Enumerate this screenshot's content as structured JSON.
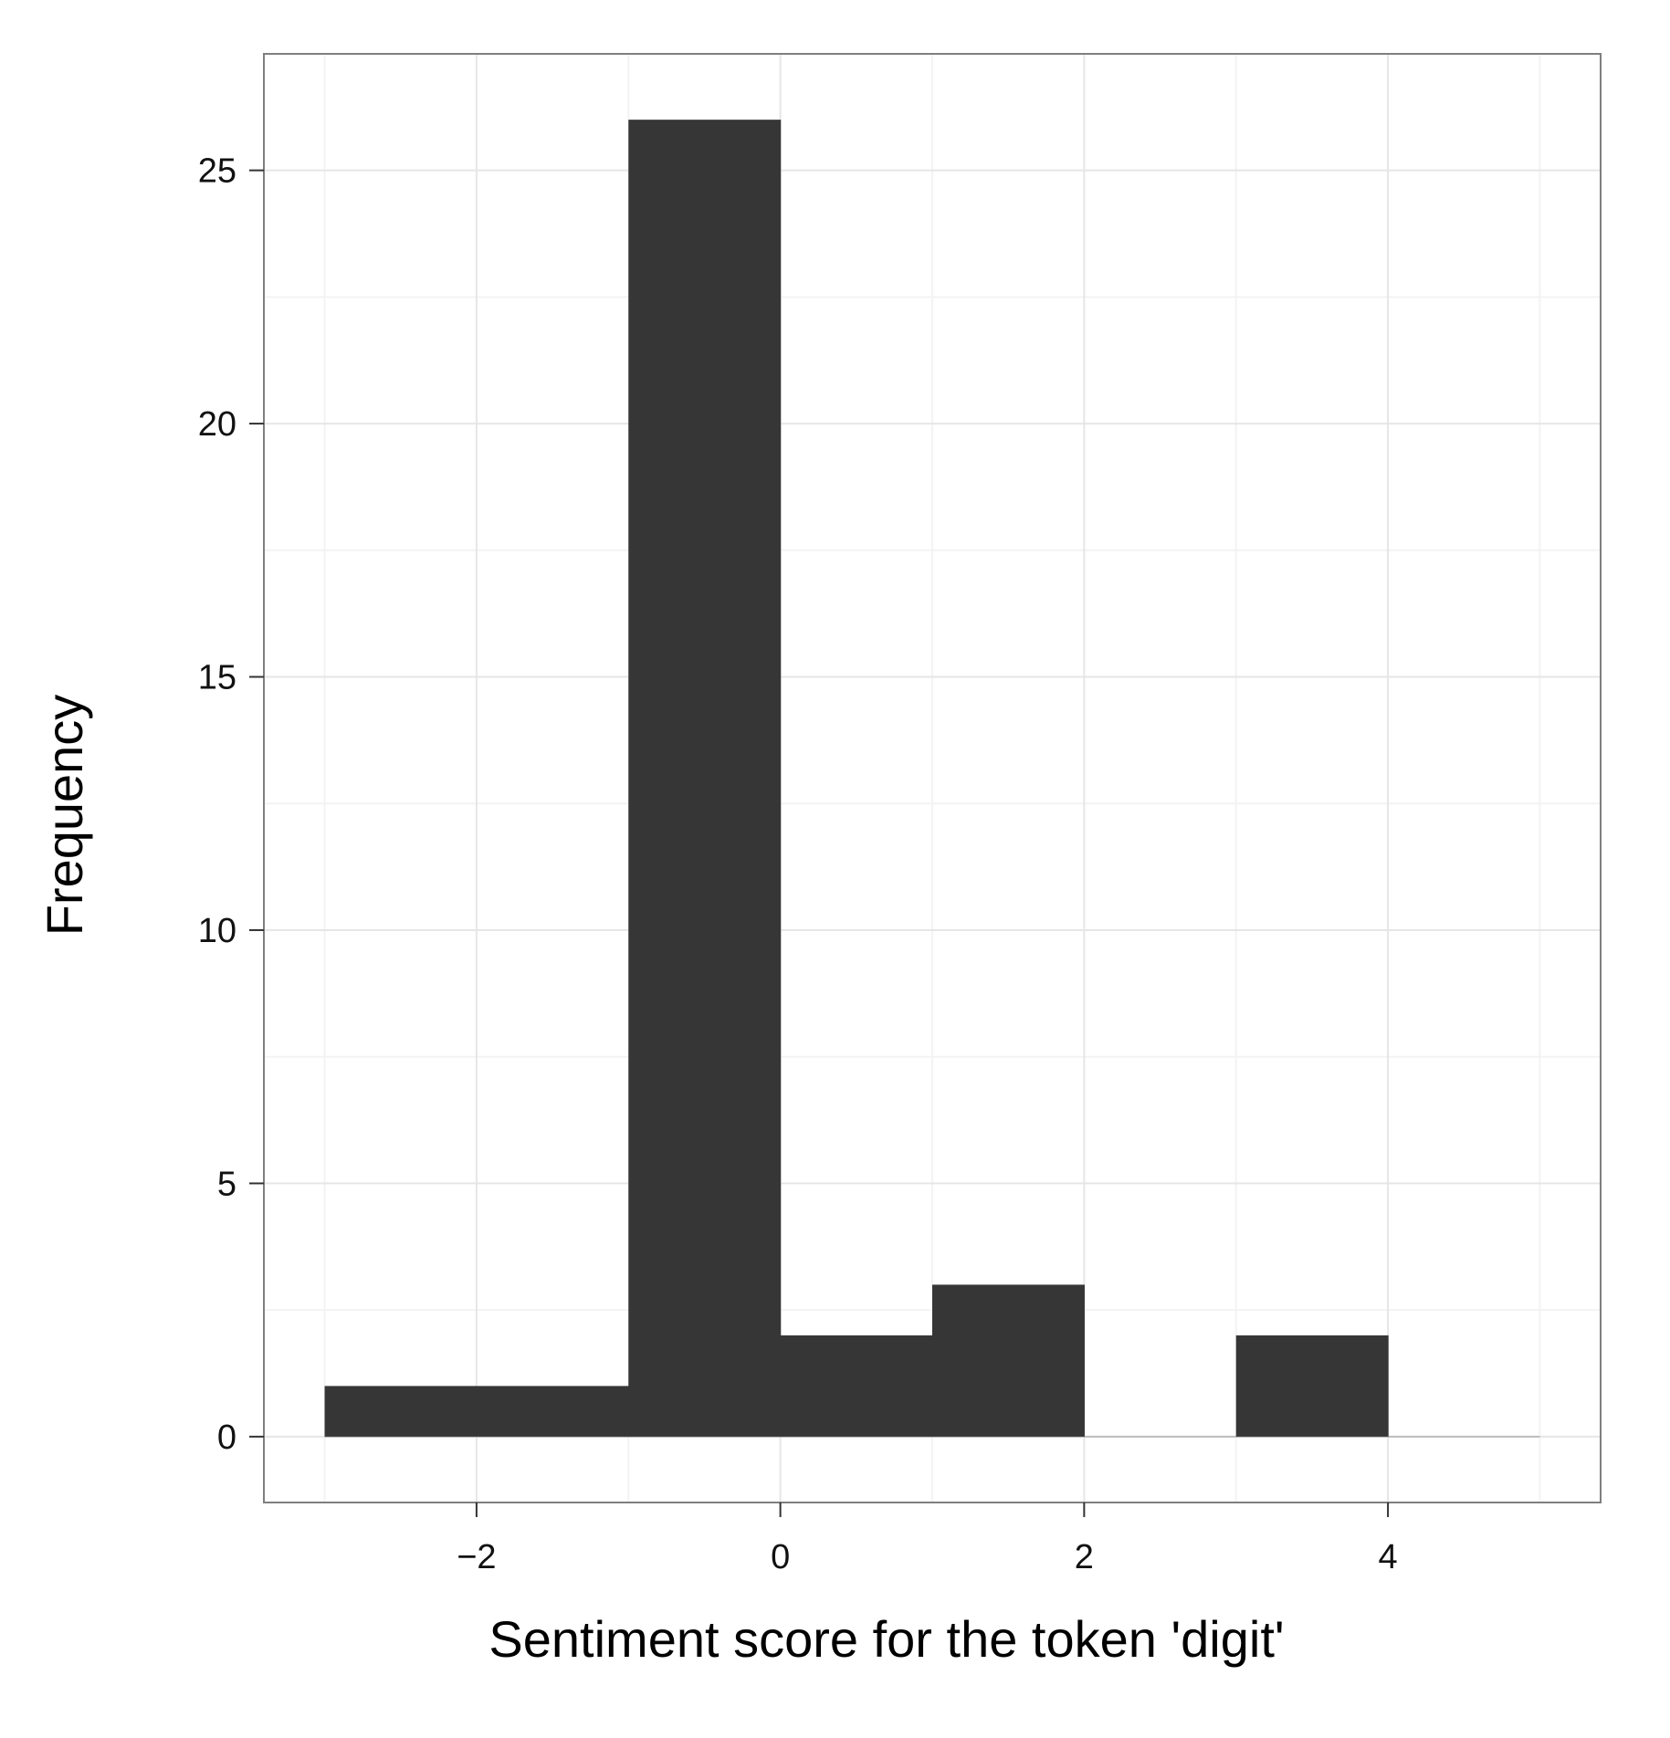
{
  "chart_data": {
    "type": "bar",
    "subtype": "histogram",
    "title": "",
    "xlabel": "Sentiment score for the token 'digit'",
    "ylabel": "Frequency",
    "bins": [
      {
        "x0": -3,
        "x1": -1,
        "count": 1
      },
      {
        "x0": -1,
        "x1": 0,
        "count": 26
      },
      {
        "x0": 0,
        "x1": 1,
        "count": 2
      },
      {
        "x0": 1,
        "x1": 2,
        "count": 3
      },
      {
        "x0": 2,
        "x1": 3,
        "count": 0
      },
      {
        "x0": 3,
        "x1": 4,
        "count": 2
      },
      {
        "x0": 4,
        "x1": 5,
        "count": 0
      }
    ],
    "xlim": [
      -3.4,
      5.4
    ],
    "ylim": [
      -1.3,
      27.3
    ],
    "x_ticks": [
      {
        "value": -2,
        "label": "−2"
      },
      {
        "value": 0,
        "label": "0"
      },
      {
        "value": 2,
        "label": "2"
      },
      {
        "value": 4,
        "label": "4"
      }
    ],
    "y_ticks": [
      {
        "value": 0,
        "label": "0"
      },
      {
        "value": 5,
        "label": "5"
      },
      {
        "value": 10,
        "label": "10"
      },
      {
        "value": 15,
        "label": "15"
      },
      {
        "value": 20,
        "label": "20"
      },
      {
        "value": 25,
        "label": "25"
      }
    ],
    "x_minor_gridlines": [
      -3,
      -1,
      1,
      3,
      5
    ],
    "y_minor_gridlines": [
      2.5,
      7.5,
      12.5,
      17.5,
      22.5
    ],
    "grid": true,
    "legend": "none",
    "colors": {
      "bar_fill": "#363636",
      "background": "#ffffff",
      "major_grid": "#e6e6e6",
      "minor_grid": "#f3f3f3",
      "frame": "#7f7f7f",
      "zero_line": "#bdbdbd"
    }
  }
}
